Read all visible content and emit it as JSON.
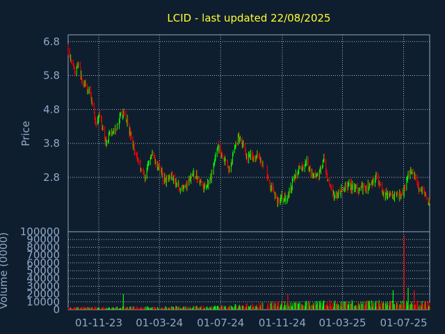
{
  "chart_data": [
    {
      "type": "candlestick",
      "panel": "price",
      "title": "LCID - last updated 22/08/2025",
      "ylabel": "Price",
      "ylim": [
        1.2,
        7.0
      ],
      "yticks": [
        2.8,
        3.8,
        4.8,
        5.8,
        6.8
      ],
      "ytick_labels": [
        "2.8",
        "3.8",
        "4.8",
        "5.8",
        "6.8"
      ],
      "xlim": [
        "2023-09-01",
        "2025-08-22"
      ],
      "xticks": [
        "2023-11-01",
        "2024-03-01",
        "2024-07-01",
        "2024-11-01",
        "2025-03-01",
        "2025-07-01"
      ],
      "xtick_labels": [
        "01-11-23",
        "01-03-24",
        "01-07-24",
        "01-11-24",
        "01-03-25",
        "01-07-25"
      ],
      "grid": true,
      "series": [
        {
          "up_color": "#00ff00",
          "down_color": "#ff0000",
          "close_path": [
            [
              "2023-09-01",
              6.6
            ],
            [
              "2023-09-08",
              6.2
            ],
            [
              "2023-09-15",
              5.9
            ],
            [
              "2023-09-22",
              6.2
            ],
            [
              "2023-09-29",
              5.6
            ],
            [
              "2023-10-06",
              5.5
            ],
            [
              "2023-10-13",
              5.3
            ],
            [
              "2023-10-20",
              5.0
            ],
            [
              "2023-10-27",
              4.3
            ],
            [
              "2023-11-03",
              4.6
            ],
            [
              "2023-11-10",
              4.1
            ],
            [
              "2023-11-17",
              3.8
            ],
            [
              "2023-11-24",
              4.1
            ],
            [
              "2023-12-01",
              4.2
            ],
            [
              "2023-12-08",
              4.3
            ],
            [
              "2023-12-15",
              4.6
            ],
            [
              "2023-12-22",
              4.7
            ],
            [
              "2023-12-29",
              4.4
            ],
            [
              "2024-01-05",
              3.9
            ],
            [
              "2024-01-12",
              3.6
            ],
            [
              "2024-01-19",
              3.3
            ],
            [
              "2024-01-26",
              3.0
            ],
            [
              "2024-02-02",
              2.8
            ],
            [
              "2024-02-09",
              3.3
            ],
            [
              "2024-02-16",
              3.5
            ],
            [
              "2024-02-23",
              3.2
            ],
            [
              "2024-03-01",
              3.1
            ],
            [
              "2024-03-08",
              2.8
            ],
            [
              "2024-03-15",
              2.7
            ],
            [
              "2024-03-22",
              2.9
            ],
            [
              "2024-03-29",
              2.8
            ],
            [
              "2024-04-05",
              2.6
            ],
            [
              "2024-04-12",
              2.5
            ],
            [
              "2024-04-19",
              2.5
            ],
            [
              "2024-04-26",
              2.6
            ],
            [
              "2024-05-03",
              2.8
            ],
            [
              "2024-05-10",
              2.9
            ],
            [
              "2024-05-17",
              2.8
            ],
            [
              "2024-05-24",
              2.6
            ],
            [
              "2024-05-31",
              2.5
            ],
            [
              "2024-06-07",
              2.7
            ],
            [
              "2024-06-14",
              2.9
            ],
            [
              "2024-06-21",
              3.5
            ],
            [
              "2024-06-28",
              3.7
            ],
            [
              "2024-07-05",
              3.4
            ],
            [
              "2024-07-12",
              3.2
            ],
            [
              "2024-07-19",
              3.0
            ],
            [
              "2024-07-26",
              3.5
            ],
            [
              "2024-08-02",
              3.9
            ],
            [
              "2024-08-09",
              4.0
            ],
            [
              "2024-08-16",
              3.7
            ],
            [
              "2024-08-23",
              3.4
            ],
            [
              "2024-08-30",
              3.5
            ],
            [
              "2024-09-06",
              3.3
            ],
            [
              "2024-09-13",
              3.4
            ],
            [
              "2024-09-20",
              3.3
            ],
            [
              "2024-10-03",
              2.7
            ],
            [
              "2024-10-10",
              2.5
            ],
            [
              "2024-10-17",
              2.3
            ],
            [
              "2024-10-24",
              2.1
            ],
            [
              "2024-10-31",
              2.2
            ],
            [
              "2024-11-07",
              2.2
            ],
            [
              "2024-11-14",
              2.3
            ],
            [
              "2024-11-21",
              2.6
            ],
            [
              "2024-11-28",
              2.9
            ],
            [
              "2024-12-05",
              3.1
            ],
            [
              "2024-12-12",
              3.0
            ],
            [
              "2024-12-19",
              3.3
            ],
            [
              "2024-12-26",
              3.0
            ],
            [
              "2025-01-02",
              2.9
            ],
            [
              "2025-01-09",
              2.8
            ],
            [
              "2025-01-16",
              3.0
            ],
            [
              "2025-01-23",
              3.3
            ],
            [
              "2025-01-30",
              2.7
            ],
            [
              "2025-02-06",
              2.4
            ],
            [
              "2025-02-13",
              2.2
            ],
            [
              "2025-02-20",
              2.3
            ],
            [
              "2025-02-27",
              2.4
            ],
            [
              "2025-03-06",
              2.5
            ],
            [
              "2025-03-13",
              2.6
            ],
            [
              "2025-03-20",
              2.5
            ],
            [
              "2025-03-27",
              2.5
            ],
            [
              "2025-04-03",
              2.4
            ],
            [
              "2025-04-10",
              2.5
            ],
            [
              "2025-04-17",
              2.5
            ],
            [
              "2025-04-24",
              2.6
            ],
            [
              "2025-05-01",
              2.7
            ],
            [
              "2025-05-08",
              2.8
            ],
            [
              "2025-05-15",
              2.6
            ],
            [
              "2025-05-22",
              2.3
            ],
            [
              "2025-05-29",
              2.3
            ],
            [
              "2025-06-05",
              2.3
            ],
            [
              "2025-06-12",
              2.2
            ],
            [
              "2025-06-19",
              2.3
            ],
            [
              "2025-06-26",
              2.3
            ],
            [
              "2025-07-03",
              2.4
            ],
            [
              "2025-07-10",
              2.9
            ],
            [
              "2025-07-17",
              3.0
            ],
            [
              "2025-07-24",
              2.8
            ],
            [
              "2025-07-31",
              2.5
            ],
            [
              "2025-08-07",
              2.4
            ],
            [
              "2025-08-14",
              2.2
            ],
            [
              "2025-08-22",
              2.1
            ]
          ]
        }
      ]
    },
    {
      "type": "bar",
      "panel": "volume",
      "ylabel": "Volume (0000)",
      "ylim": [
        0,
        100000
      ],
      "yticks": [
        0,
        10000,
        20000,
        30000,
        40000,
        50000,
        60000,
        70000,
        80000,
        90000,
        100000
      ],
      "ytick_labels": [
        "0",
        "10000",
        "20000",
        "30000",
        "40000",
        "50000",
        "60000",
        "70000",
        "80000",
        "90000",
        "100000"
      ],
      "grid": true,
      "series": [
        {
          "up_color": "#00ff00",
          "down_color": "#ff0000",
          "typical_by_period": [
            [
              "2023-09-01",
              3000
            ],
            [
              "2024-06-15",
              4000
            ],
            [
              "2024-11-01",
              9000
            ],
            [
              "2025-03-01",
              10000
            ],
            [
              "2025-08-22",
              9000
            ]
          ],
          "spikes": [
            [
              "2023-12-20",
              20000
            ],
            [
              "2024-11-12",
              20000
            ],
            [
              "2025-06-10",
              25000
            ],
            [
              "2025-07-02",
              95000
            ],
            [
              "2025-07-10",
              28000
            ],
            [
              "2025-07-22",
              25000
            ]
          ]
        }
      ]
    }
  ]
}
